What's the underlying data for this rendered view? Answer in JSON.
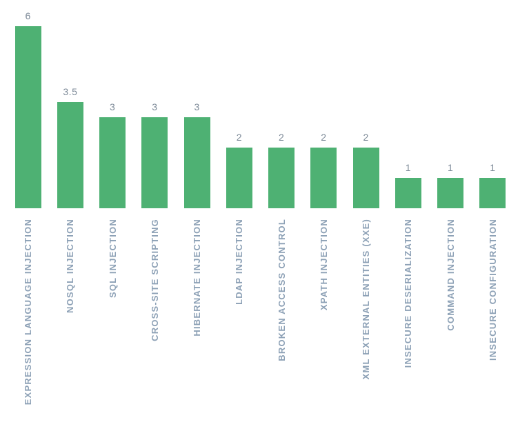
{
  "chart_data": {
    "type": "bar",
    "title": "",
    "xlabel": "",
    "ylabel": "",
    "categories": [
      "EXPRESSION LANGUAGE INJECTION",
      "NOSQL INJECTION",
      "SQL INJECTION",
      "CROSS-SITE SCRIPTING",
      "HIBERNATE INJECTION",
      "LDAP INJECTION",
      "BROKEN ACCESS CONTROL",
      "XPATH INJECTION",
      "XML EXTERNAL ENTITIES (XXE)",
      "INSECURE DESERIALIZATION",
      "COMMAND INJECTION",
      "INSECURE CONFIGURATION"
    ],
    "values": [
      6,
      3.5,
      3,
      3,
      3,
      2,
      2,
      2,
      2,
      1,
      1,
      1
    ],
    "value_labels": [
      "6",
      "3.5",
      "3",
      "3",
      "3",
      "2",
      "2",
      "2",
      "2",
      "1",
      "1",
      "1"
    ],
    "ylim": [
      0,
      6
    ],
    "grid": false,
    "legend": "none",
    "orientation": "vertical",
    "category_label_rotation": -90,
    "colors": {
      "bar": "#4eb173",
      "value_label": "#7d8a98",
      "category_label": "#8da1b6",
      "background": "#ffffff"
    }
  }
}
